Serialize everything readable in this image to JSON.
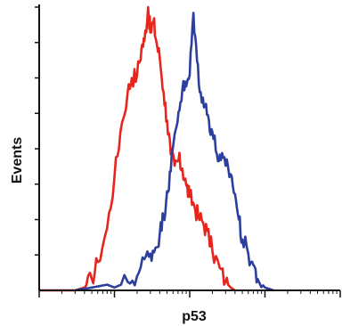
{
  "chart_data": {
    "type": "line",
    "title": "",
    "xlabel": "p53",
    "ylabel": "Events",
    "x_scale": "log",
    "xlim": [
      1,
      10000
    ],
    "ylim": [
      0,
      100
    ],
    "grid": false,
    "legend": "none",
    "series": [
      {
        "color": "#e8251c",
        "x": [
          1,
          3,
          4,
          5,
          6,
          8,
          10,
          12,
          15,
          17,
          20,
          23,
          25,
          28,
          30,
          33,
          36,
          40,
          45,
          50,
          56,
          63,
          71,
          80,
          90,
          100,
          115,
          130,
          150,
          170,
          200,
          250,
          300,
          350,
          400
        ],
        "y": [
          0,
          0,
          1,
          4,
          10,
          22,
          40,
          56,
          70,
          75,
          76,
          86,
          88,
          100,
          91,
          95,
          88,
          82,
          70,
          60,
          48,
          44,
          46,
          43,
          37,
          33,
          30,
          26,
          24,
          21,
          14,
          8,
          3,
          1,
          0
        ]
      },
      {
        "color": "#2d3f9e",
        "x": [
          3,
          5,
          8,
          10,
          15,
          20,
          25,
          30,
          35,
          40,
          45,
          50,
          56,
          63,
          71,
          80,
          90,
          100,
          112,
          125,
          140,
          160,
          180,
          200,
          230,
          260,
          300,
          350,
          400,
          450,
          500,
          600,
          700,
          800,
          1000,
          1300
        ],
        "y": [
          0,
          1,
          2,
          1,
          3,
          5,
          11,
          13,
          15,
          20,
          26,
          35,
          42,
          55,
          63,
          71,
          72,
          76,
          98,
          81,
          70,
          65,
          60,
          56,
          48,
          46,
          44,
          41,
          34,
          25,
          18,
          13,
          9,
          4,
          1,
          0
        ]
      }
    ]
  }
}
